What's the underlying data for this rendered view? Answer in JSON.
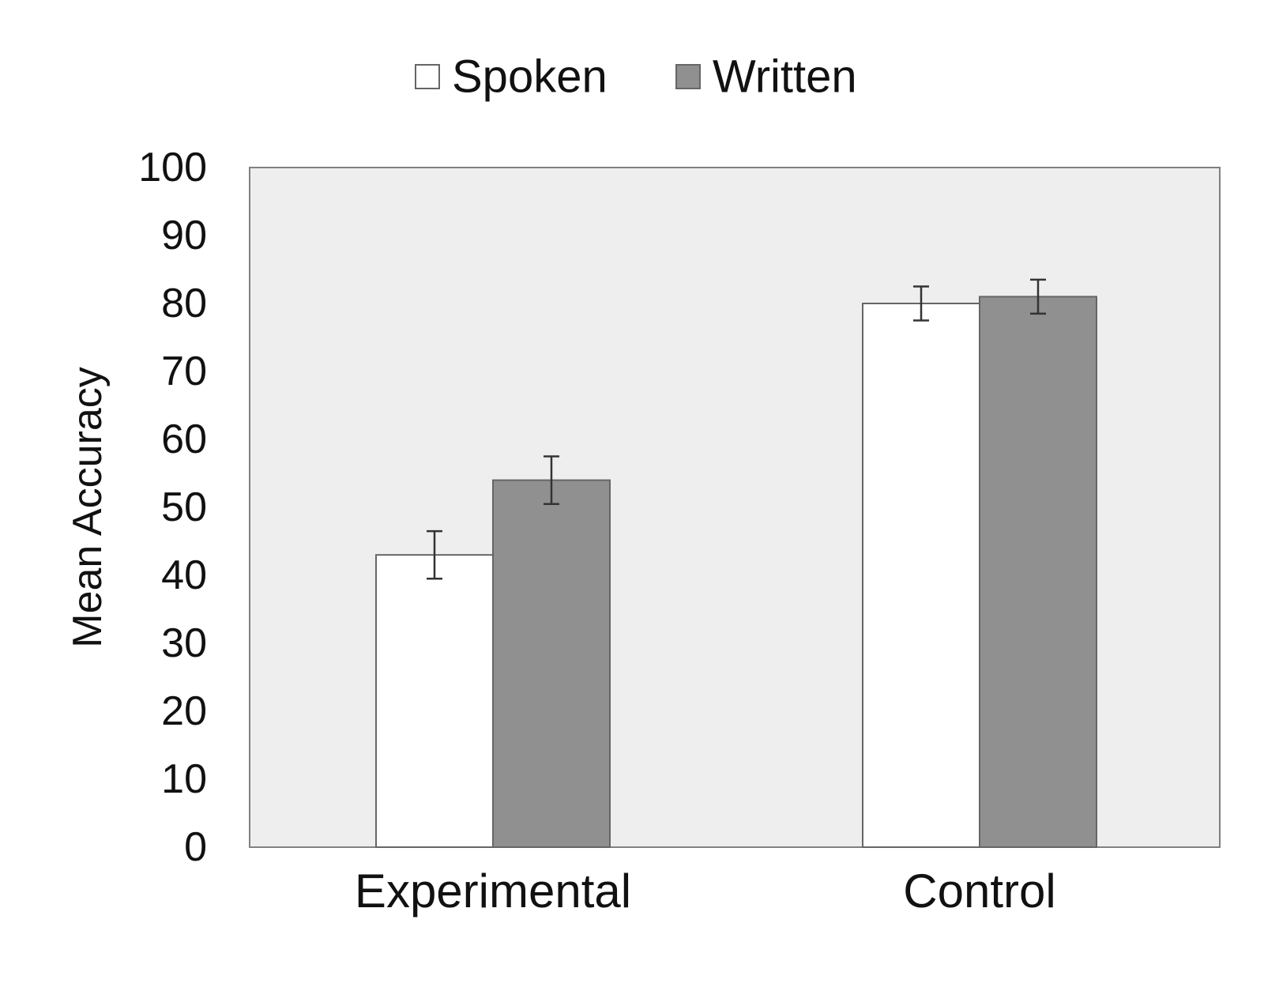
{
  "chart_data": {
    "type": "bar",
    "title": "",
    "xlabel": "",
    "ylabel": "Mean Accuracy",
    "categories": [
      "Experimental",
      "Control"
    ],
    "series": [
      {
        "name": "Spoken",
        "values": [
          43,
          80
        ],
        "error": [
          3.5,
          2.5
        ],
        "color": "#ffffff"
      },
      {
        "name": "Written",
        "values": [
          54,
          81
        ],
        "error": [
          3.5,
          2.5
        ],
        "color": "#909090"
      }
    ],
    "ylim": [
      0,
      100
    ],
    "yticks": [
      0,
      10,
      20,
      30,
      40,
      50,
      60,
      70,
      80,
      90,
      100
    ],
    "grid": false,
    "legend_position": "top-center",
    "plot_background": "#eeeeee",
    "bar_edge_color": "#666666",
    "error_bar_color": "#333333"
  }
}
